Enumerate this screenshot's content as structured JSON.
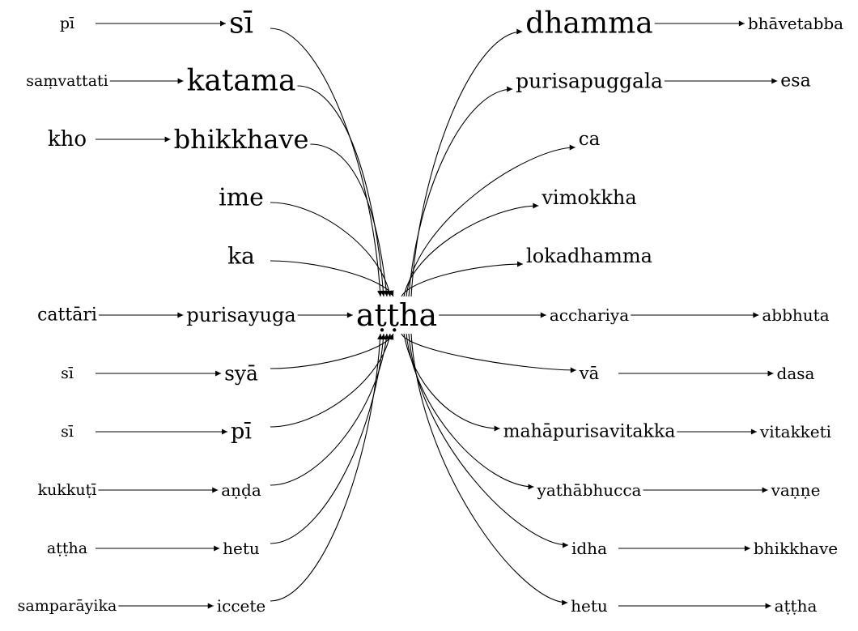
{
  "center": "aṭṭha",
  "left_inner": [
    {
      "id": "L0",
      "label": "sī"
    },
    {
      "id": "L1",
      "label": "katama"
    },
    {
      "id": "L2",
      "label": "bhikkhave"
    },
    {
      "id": "L3",
      "label": "ime"
    },
    {
      "id": "L4",
      "label": "ka"
    },
    {
      "id": "L5",
      "label": "purisayuga"
    },
    {
      "id": "L6",
      "label": "syā"
    },
    {
      "id": "L7",
      "label": "pī"
    },
    {
      "id": "L8",
      "label": "aṇḍa"
    },
    {
      "id": "L9",
      "label": "hetu"
    },
    {
      "id": "L10",
      "label": "iccete"
    }
  ],
  "left_outer": [
    {
      "id": "P0",
      "label": "pī",
      "target": "L0"
    },
    {
      "id": "P1",
      "label": "saṃvattati",
      "target": "L1"
    },
    {
      "id": "P2",
      "label": "kho",
      "target": "L2"
    },
    {
      "id": "P5",
      "label": "cattāri",
      "target": "L5"
    },
    {
      "id": "P6",
      "label": "sī",
      "target": "L6"
    },
    {
      "id": "P7",
      "label": "sī",
      "target": "L7"
    },
    {
      "id": "P8",
      "label": "kukkuṭī",
      "target": "L8"
    },
    {
      "id": "P9",
      "label": "aṭṭha",
      "target": "L9"
    },
    {
      "id": "P10",
      "label": "samparāyika",
      "target": "L10"
    }
  ],
  "right_inner": [
    {
      "id": "R0",
      "label": "dhamma"
    },
    {
      "id": "R1",
      "label": "purisapuggala"
    },
    {
      "id": "R2",
      "label": "ca"
    },
    {
      "id": "R3",
      "label": "vimokkha"
    },
    {
      "id": "R4",
      "label": "lokadhamma"
    },
    {
      "id": "R5",
      "label": "acchariya"
    },
    {
      "id": "R6",
      "label": "vā"
    },
    {
      "id": "R7",
      "label": "mahāpurisavitakka"
    },
    {
      "id": "R8",
      "label": "yathābhucca"
    },
    {
      "id": "R9",
      "label": "idha"
    },
    {
      "id": "R10",
      "label": "hetu"
    }
  ],
  "right_outer": [
    {
      "id": "S0",
      "label": "bhāvetabba",
      "source": "R0"
    },
    {
      "id": "S1",
      "label": "esa",
      "source": "R1"
    },
    {
      "id": "S5",
      "label": "abbhuta",
      "source": "R5"
    },
    {
      "id": "S6",
      "label": "dasa",
      "source": "R6"
    },
    {
      "id": "S7",
      "label": "vitakketi",
      "source": "R7"
    },
    {
      "id": "S8",
      "label": "vaṇṇe",
      "source": "R8"
    },
    {
      "id": "S9",
      "label": "bhikkhave",
      "source": "R9"
    },
    {
      "id": "S10",
      "label": "aṭṭha",
      "source": "R10"
    }
  ]
}
